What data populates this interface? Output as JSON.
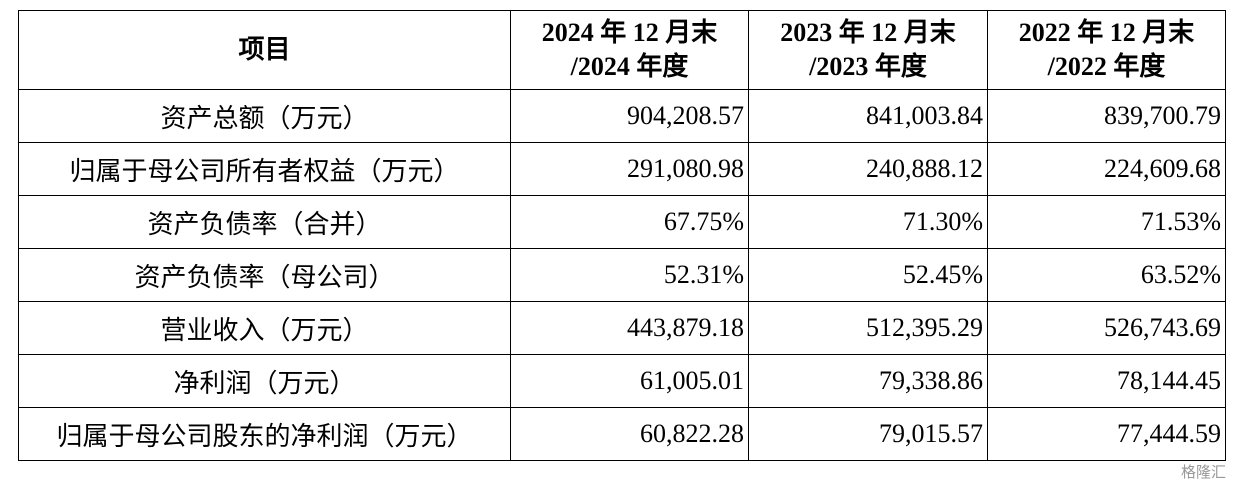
{
  "table": {
    "header": [
      {
        "lines": [
          "项目"
        ]
      },
      {
        "lines": [
          "2024 年 12 月末",
          "/2024 年度"
        ]
      },
      {
        "lines": [
          "2023 年 12 月末",
          "/2023 年度"
        ]
      },
      {
        "lines": [
          "2022 年 12 月末",
          "/2022 年度"
        ]
      }
    ],
    "rows": [
      [
        "资产总额（万元）",
        "904,208.57",
        "841,003.84",
        "839,700.79"
      ],
      [
        "归属于母公司所有者权益（万元）",
        "291,080.98",
        "240,888.12",
        "224,609.68"
      ],
      [
        "资产负债率（合并）",
        "67.75%",
        "71.30%",
        "71.53%"
      ],
      [
        "资产负债率（母公司）",
        "52.31%",
        "52.45%",
        "63.52%"
      ],
      [
        "营业收入（万元）",
        "443,879.18",
        "512,395.29",
        "526,743.69"
      ],
      [
        "净利润（万元）",
        "61,005.01",
        "79,338.86",
        "78,144.45"
      ],
      [
        "归属于母公司股东的净利润（万元）",
        "60,822.28",
        "79,015.57",
        "77,444.59"
      ]
    ]
  },
  "watermark": "格隆汇"
}
